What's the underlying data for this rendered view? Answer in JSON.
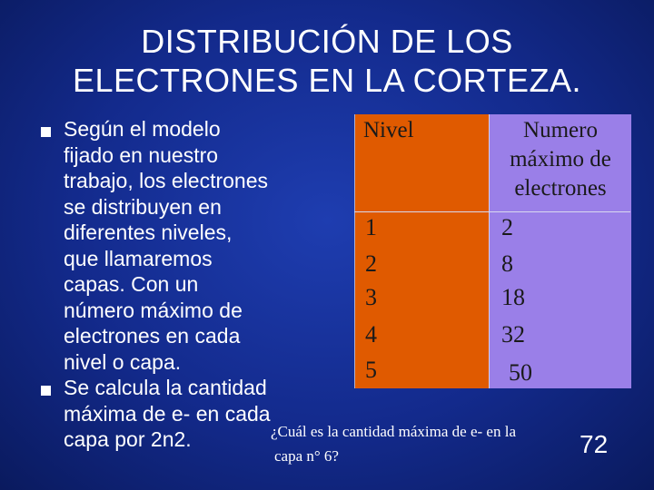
{
  "title": {
    "line1": "DISTRIBUCIÓN DE LOS",
    "line2": "ELECTRONES EN LA CORTEZA."
  },
  "bullets": [
    {
      "lines": [
        "Según el modelo",
        "fijado en nuestro",
        "trabajo, los electrones",
        "se distribuyen en",
        "diferentes niveles,",
        "que llamaremos",
        "capas. Con un",
        "número máximo de",
        "electrones en cada",
        "nivel o capa."
      ]
    },
    {
      "lines": [
        "Se calcula la cantidad",
        "máxima de e- en cada",
        "capa por 2n2."
      ]
    }
  ],
  "table": {
    "header_nivel": "Nivel",
    "header_numero": [
      "Numero",
      "máximo de",
      "electrones"
    ],
    "rows": [
      {
        "nivel": "1",
        "max": "2"
      },
      {
        "nivel": "2",
        "max": "8"
      },
      {
        "nivel": "3",
        "max": "18"
      },
      {
        "nivel": "4",
        "max": "32"
      },
      {
        "nivel": "5",
        "max": "50"
      }
    ]
  },
  "question": {
    "line1": "¿Cuál es la cantidad  máxima de e- en la",
    "line2": "capa n° 6?"
  },
  "page_number": "72",
  "colors": {
    "background": "#132a8c",
    "nivel_column": "#e05a00",
    "numero_column": "#9a7fe8"
  }
}
